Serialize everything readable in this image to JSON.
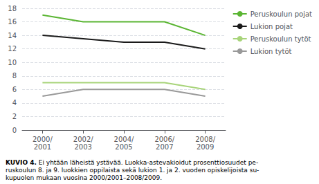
{
  "chart_data": {
    "type": "line",
    "title": "KUVIO 4.",
    "subtitle": " Ei yhtään läheistä ystävää. Luokka-astevakioidut prosenttiosuudet pe-\nruskoulun 8. ja 9. luokkien oppilaista sekä lukion 1. ja 2. vuoden opiskelijoista su-\nkupuolen mukaan vuosina 2000/2001–2008/2009.",
    "categories": [
      "2000/\n2001",
      "2002/\n2003",
      "2004/\n2005",
      "2006/\n2007",
      "2008/\n2009"
    ],
    "series": [
      {
        "name": "Peruskoulun pojat",
        "color": "#5ab532",
        "values": [
          17.0,
          16.0,
          16.0,
          16.0,
          14.0
        ]
      },
      {
        "name": "Lukion pojat",
        "color": "#1a1a1a",
        "values": [
          14.0,
          13.5,
          13.0,
          13.0,
          12.0
        ]
      },
      {
        "name": "Peruskoulun tytöt",
        "color": "#a8d47a",
        "values": [
          7.0,
          7.0,
          7.0,
          7.0,
          6.0
        ]
      },
      {
        "name": "Lukion tytöt",
        "color": "#999999",
        "values": [
          5.0,
          6.0,
          6.0,
          6.0,
          5.0
        ]
      }
    ],
    "ylim": [
      0,
      18
    ],
    "yticks": [
      0,
      2,
      4,
      6,
      8,
      10,
      12,
      14,
      16,
      18
    ],
    "grid": true,
    "legend": "upper right"
  }
}
